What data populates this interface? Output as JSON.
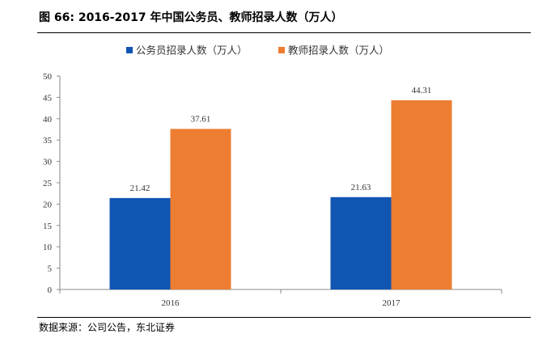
{
  "figure": {
    "title": "图  66:  2016-2017 年中国公务员、教师招录人数（万人）",
    "source": "数据来源：公司公告，东北证券"
  },
  "chart_data": {
    "type": "bar",
    "categories": [
      "2016",
      "2017"
    ],
    "series": [
      {
        "name": "公务员招录人数（万人）",
        "values": [
          21.42,
          21.63
        ],
        "color": "#1155b3"
      },
      {
        "name": "教师招录人数（万人）",
        "values": [
          37.61,
          44.31
        ],
        "color": "#ed7d31"
      }
    ],
    "ylim": [
      0,
      50
    ],
    "yticks": [
      0,
      5,
      10,
      15,
      20,
      25,
      30,
      35,
      40,
      45,
      50
    ],
    "data_labels": [
      [
        "21.42",
        "21.63"
      ],
      [
        "37.61",
        "44.31"
      ]
    ],
    "legend_position": "top-center",
    "grid": false
  }
}
